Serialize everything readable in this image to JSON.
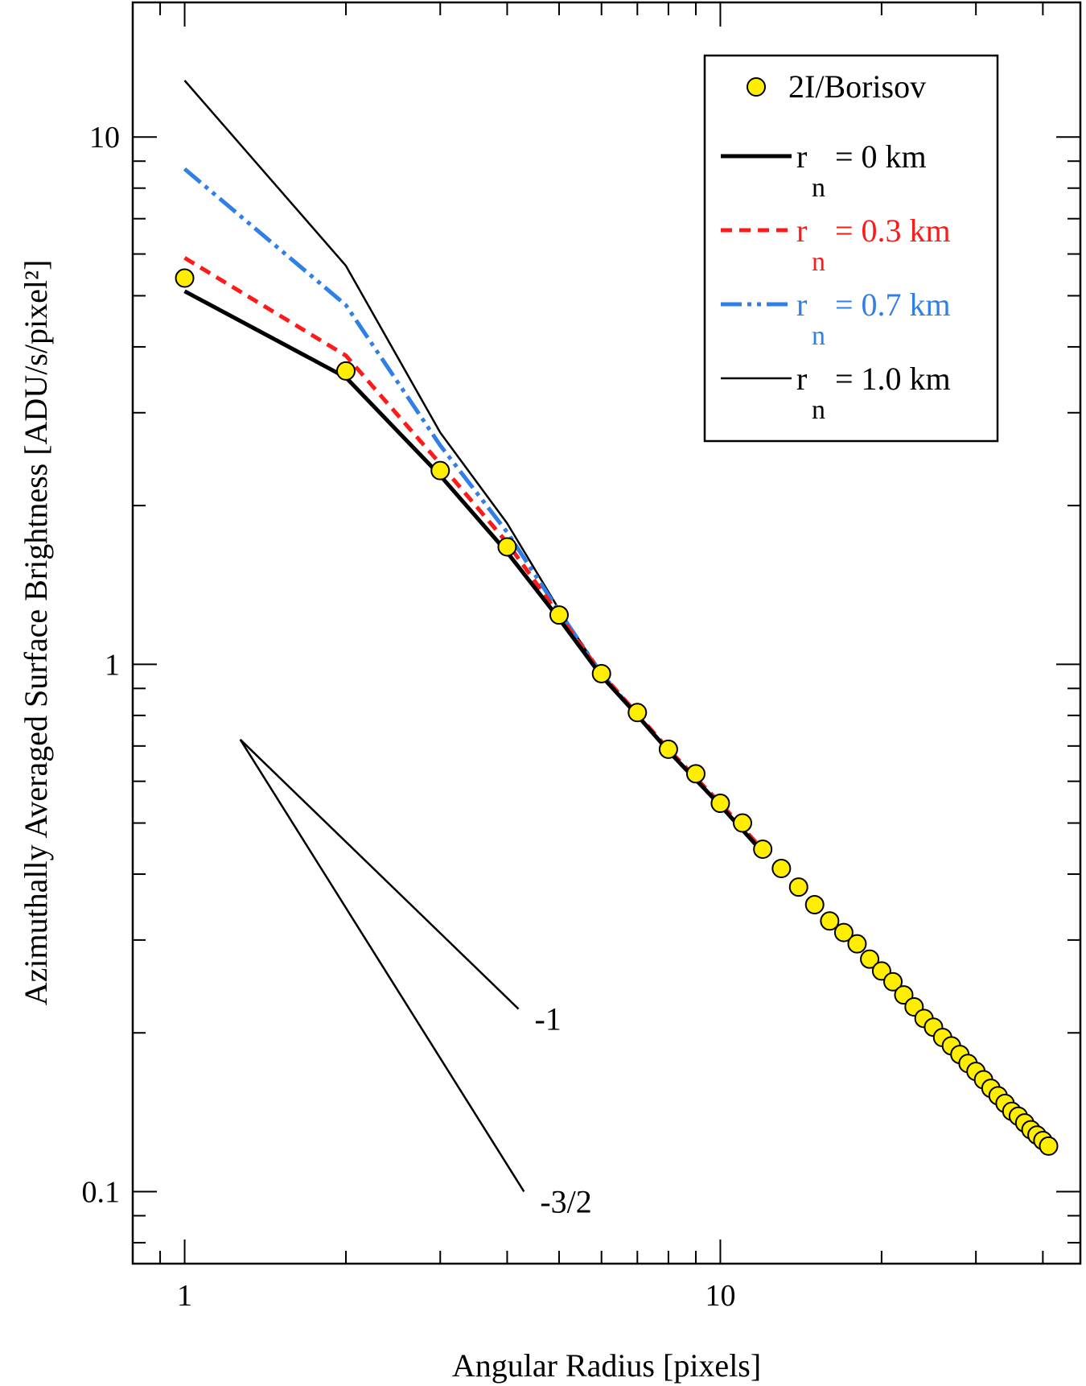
{
  "chart_data": {
    "type": "scatter",
    "title": "",
    "xlabel": "Angular Radius [pixels]",
    "ylabel": "Azimuthally Averaged Surface Brightness [ADU/s/pixel²]",
    "xscale": "log",
    "yscale": "log",
    "xlim": [
      0.8,
      47
    ],
    "ylim": [
      0.073,
      18
    ],
    "x_ticks": [
      {
        "value": 1,
        "label": "1"
      },
      {
        "value": 10,
        "label": "10"
      }
    ],
    "y_ticks": [
      {
        "value": 0.1,
        "label": "0.1"
      },
      {
        "value": 1,
        "label": "1"
      },
      {
        "value": 10,
        "label": "10"
      }
    ],
    "legend_position": "top-right",
    "series": [
      {
        "name": "2I/Borisov",
        "kind": "points",
        "color": "#ffee00",
        "legend": {
          "label": "2I/Borisov"
        },
        "x": [
          1,
          2,
          3,
          4,
          5,
          6,
          7,
          8,
          9,
          10,
          11,
          12,
          13,
          14,
          15,
          16,
          17,
          18,
          19,
          20,
          21,
          22,
          23,
          24,
          25,
          26,
          27,
          28,
          29,
          30,
          31,
          32,
          33,
          34,
          35,
          36,
          37,
          38,
          39,
          40,
          41
        ],
        "y": [
          5.4,
          3.6,
          2.33,
          1.67,
          1.24,
          0.96,
          0.81,
          0.69,
          0.62,
          0.545,
          0.5,
          0.446,
          0.41,
          0.378,
          0.35,
          0.326,
          0.31,
          0.295,
          0.276,
          0.262,
          0.25,
          0.236,
          0.224,
          0.213,
          0.205,
          0.196,
          0.189,
          0.182,
          0.175,
          0.169,
          0.163,
          0.157,
          0.152,
          0.147,
          0.142,
          0.139,
          0.135,
          0.131,
          0.128,
          0.125,
          0.122
        ]
      },
      {
        "name": "r_n = 0 km",
        "kind": "line",
        "color": "#000000",
        "dash": "",
        "width": 5,
        "legend": {
          "label": "r",
          "sub": "n",
          "value": "= 0 km"
        },
        "x": [
          1,
          2,
          3,
          4,
          5,
          6,
          7,
          8,
          10,
          12
        ],
        "y": [
          5.1,
          3.5,
          2.28,
          1.63,
          1.22,
          0.95,
          0.8,
          0.685,
          0.54,
          0.44
        ]
      },
      {
        "name": "r_n = 0.3 km",
        "kind": "line",
        "color": "#ff1a1a",
        "dash": "14 9",
        "width": 5,
        "legend": {
          "label": "r",
          "sub": "n",
          "value": "= 0.3 km"
        },
        "x": [
          1,
          2,
          3,
          4,
          5,
          6,
          7,
          8,
          10,
          12
        ],
        "y": [
          5.9,
          3.85,
          2.4,
          1.7,
          1.24,
          0.96,
          0.805,
          0.69,
          0.545,
          0.445
        ]
      },
      {
        "name": "r_n = 0.7 km",
        "kind": "line",
        "color": "#2f7fe6",
        "dash": "26 7 5 7 5 7",
        "width": 5,
        "legend": {
          "label": "r",
          "sub": "n",
          "value": "= 0.7 km"
        },
        "x": [
          1,
          2,
          3,
          4,
          5,
          6,
          7,
          8,
          10,
          12
        ],
        "y": [
          8.7,
          4.8,
          2.6,
          1.78,
          1.26,
          0.96,
          0.8,
          0.685,
          0.54,
          0.44
        ]
      },
      {
        "name": "r_n = 1.0 km",
        "kind": "line",
        "color": "#000000",
        "dash": "",
        "width": 2.5,
        "legend": {
          "label": "r",
          "sub": "n",
          "value": "= 1.0 km"
        },
        "x": [
          1,
          2,
          3,
          4,
          5,
          6,
          7,
          8,
          10,
          12
        ],
        "y": [
          12.8,
          5.7,
          2.75,
          1.85,
          1.27,
          0.96,
          0.8,
          0.685,
          0.54,
          0.44
        ]
      }
    ],
    "annotations": [
      {
        "label": "-1",
        "x": [
          1.27,
          4.2
        ],
        "y": [
          0.72,
          0.222
        ]
      },
      {
        "label": "-3/2",
        "x": [
          1.27,
          4.3
        ],
        "y": [
          0.72,
          0.1
        ]
      }
    ]
  }
}
